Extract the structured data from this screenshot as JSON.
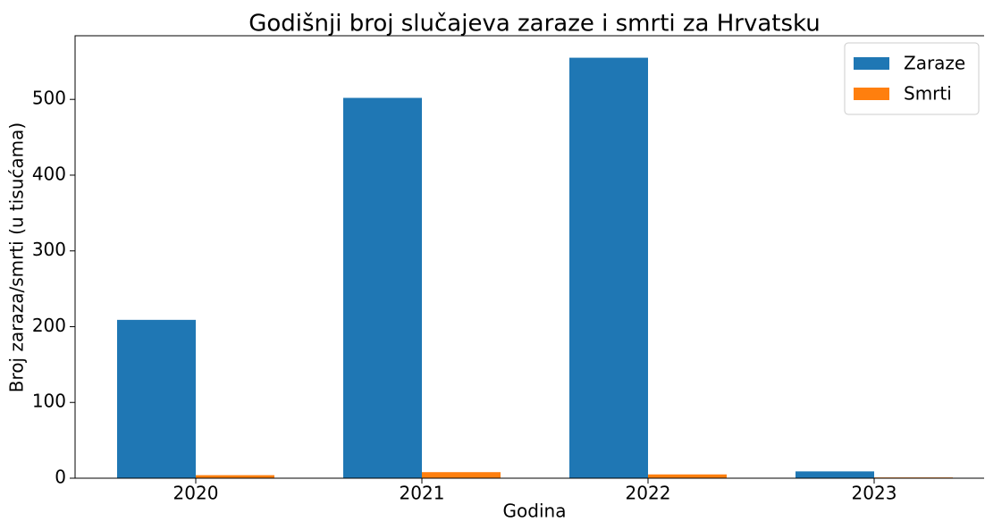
{
  "chart_data": {
    "type": "bar",
    "title": "Godišnji broj slučajeva zaraze i smrti za Hrvatsku",
    "x_label": "Godina",
    "y_label": "Broj zaraza/smrti (u tisućama)",
    "categories": [
      "2020",
      "2021",
      "2022",
      "2023"
    ],
    "series": [
      {
        "name": "Zaraze",
        "color": "#1f77b4",
        "values": [
          209,
          502,
          555,
          9
        ]
      },
      {
        "name": "Smrti",
        "color": "#ff7f0e",
        "values": [
          4,
          8,
          5,
          1
        ]
      }
    ],
    "ylim": [
      0,
      584
    ],
    "yticks": [
      0,
      100,
      200,
      300,
      400,
      500
    ],
    "legend": "upper right",
    "grid": false
  }
}
